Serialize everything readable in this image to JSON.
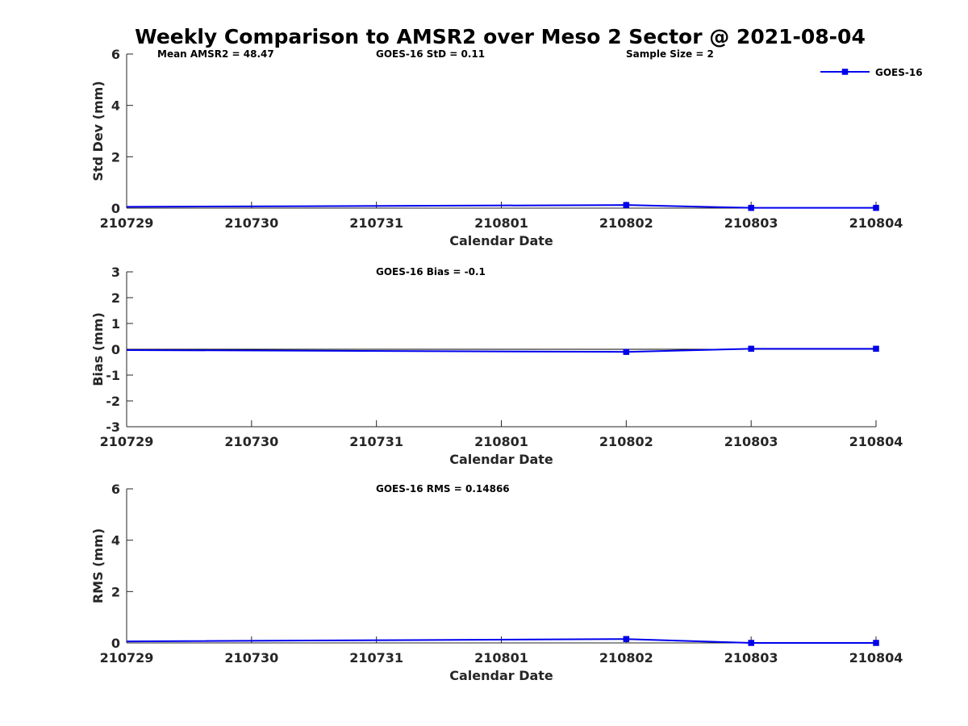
{
  "figure": {
    "title": "Weekly Comparison to AMSR2 over Meso 2 Sector @ 2021-08-04"
  },
  "colors": {
    "series": "#0000ee",
    "axis": "#262626"
  },
  "chart_data": [
    {
      "id": "std",
      "type": "line",
      "title": "",
      "xlabel": "Calendar Date",
      "ylabel": "Std Dev (mm)",
      "categories": [
        "210729",
        "210730",
        "210731",
        "210801",
        "210802",
        "210803",
        "210804"
      ],
      "ylim": [
        0,
        6
      ],
      "yticks": [
        "0",
        "2",
        "4",
        "6"
      ],
      "yticks_values": [
        0,
        2,
        4,
        6
      ],
      "series": [
        {
          "name": "GOES-16",
          "x": [
            0,
            4,
            5,
            6
          ],
          "values": [
            0.05,
            0.12,
            0.01,
            0.01
          ]
        }
      ],
      "annotations": [
        {
          "text": "Mean AMSR2 = 48.47",
          "anchor": "left"
        },
        {
          "text": "GOES-16 StD = 0.11",
          "anchor": "center-left"
        },
        {
          "text": "Sample Size = 2",
          "anchor": "right"
        }
      ],
      "legend": {
        "entries": [
          "GOES-16"
        ],
        "position": "top-right"
      },
      "zero_line": false
    },
    {
      "id": "bias",
      "type": "line",
      "title": "",
      "xlabel": "Calendar Date",
      "ylabel": "Bias (mm)",
      "categories": [
        "210729",
        "210730",
        "210731",
        "210801",
        "210802",
        "210803",
        "210804"
      ],
      "ylim": [
        -3,
        3
      ],
      "yticks": [
        "-3",
        "-2",
        "-1",
        "0",
        "1",
        "2",
        "3"
      ],
      "yticks_values": [
        -3,
        -2,
        -1,
        0,
        1,
        2,
        3
      ],
      "series": [
        {
          "name": "GOES-16",
          "x": [
            0,
            4,
            5,
            6
          ],
          "values": [
            -0.03,
            -0.1,
            0.02,
            0.02
          ]
        }
      ],
      "annotations": [
        {
          "text": "GOES-16 Bias  = -0.1",
          "anchor": "center-left"
        }
      ],
      "zero_line": true
    },
    {
      "id": "rms",
      "type": "line",
      "title": "",
      "xlabel": "Calendar Date",
      "ylabel": "RMS (mm)",
      "categories": [
        "210729",
        "210730",
        "210731",
        "210801",
        "210802",
        "210803",
        "210804"
      ],
      "ylim": [
        0,
        6
      ],
      "yticks": [
        "0",
        "2",
        "4",
        "6"
      ],
      "yticks_values": [
        0,
        2,
        4,
        6
      ],
      "series": [
        {
          "name": "GOES-16",
          "x": [
            0,
            4,
            5,
            6
          ],
          "values": [
            0.06,
            0.15,
            0.0,
            0.0
          ]
        }
      ],
      "annotations": [
        {
          "text": "GOES-16 RMS = 0.14866",
          "anchor": "center-left"
        }
      ],
      "zero_line": false
    }
  ]
}
